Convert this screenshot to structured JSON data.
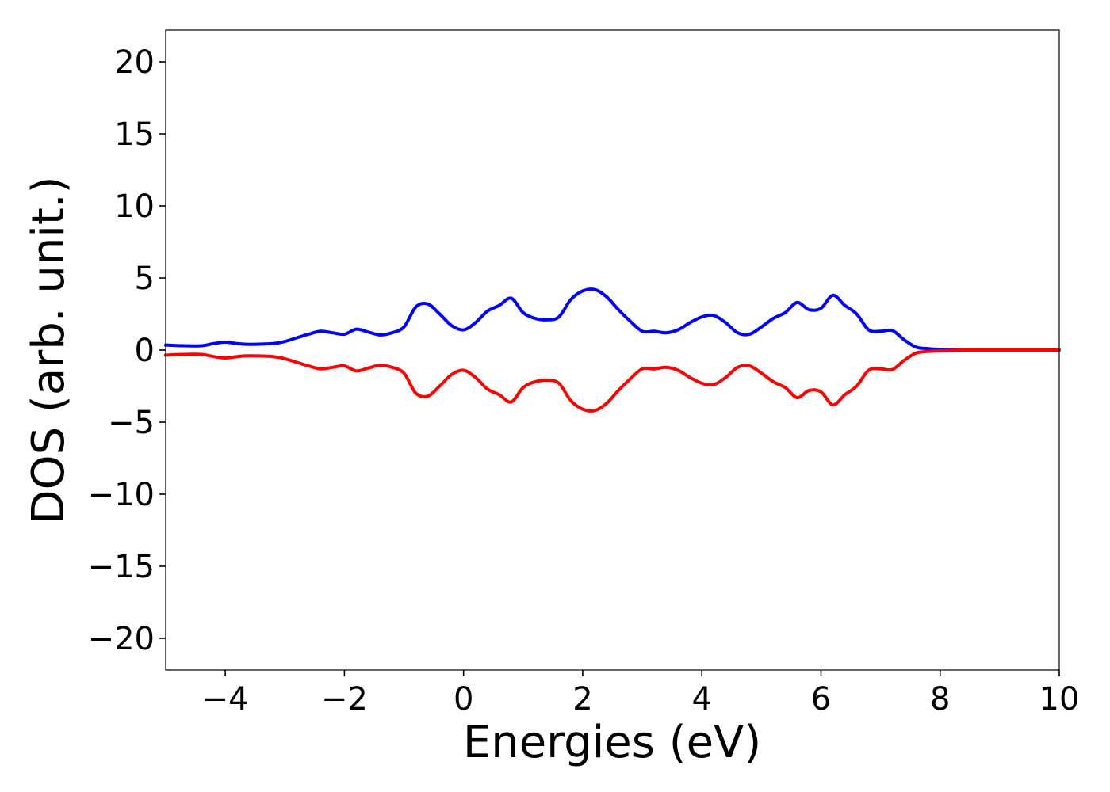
{
  "chart_data": {
    "type": "line",
    "title": "",
    "xlabel": "Energies (eV)",
    "ylabel": "DOS (arb. unit.)",
    "xlim": [
      -5,
      10
    ],
    "ylim": [
      -22.2,
      22.2
    ],
    "xticks": [
      -4,
      -2,
      0,
      2,
      4,
      6,
      8,
      10
    ],
    "xtick_labels": [
      "−4",
      "−2",
      "0",
      "2",
      "4",
      "6",
      "8",
      "10"
    ],
    "yticks": [
      20,
      15,
      10,
      5,
      0,
      -5,
      -10,
      -15,
      -20
    ],
    "ytick_labels": [
      "20",
      "15",
      "10",
      "5",
      "0",
      "−5",
      "−10",
      "−15",
      "−20"
    ],
    "grid": false,
    "x": [
      -5.0,
      -4.7,
      -4.4,
      -4.2,
      -4.0,
      -3.8,
      -3.6,
      -3.2,
      -3.0,
      -2.8,
      -2.6,
      -2.4,
      -2.2,
      -2.0,
      -1.8,
      -1.6,
      -1.4,
      -1.2,
      -1.0,
      -0.8,
      -0.6,
      -0.4,
      -0.2,
      0.0,
      0.2,
      0.4,
      0.6,
      0.8,
      1.0,
      1.2,
      1.4,
      1.6,
      1.8,
      2.0,
      2.2,
      2.4,
      2.6,
      2.8,
      3.0,
      3.2,
      3.4,
      3.6,
      3.8,
      4.0,
      4.2,
      4.4,
      4.6,
      4.8,
      5.0,
      5.2,
      5.4,
      5.6,
      5.8,
      6.0,
      6.2,
      6.4,
      6.6,
      6.8,
      7.0,
      7.2,
      7.4,
      7.6,
      7.8,
      8.0,
      8.2,
      8.4,
      9.0,
      10.0
    ],
    "series": [
      {
        "color": "#0000ff",
        "values": [
          0.35,
          0.3,
          0.3,
          0.45,
          0.55,
          0.45,
          0.4,
          0.45,
          0.6,
          0.85,
          1.1,
          1.3,
          1.2,
          1.1,
          1.45,
          1.25,
          1.05,
          1.2,
          1.6,
          3.0,
          3.2,
          2.5,
          1.7,
          1.4,
          1.9,
          2.7,
          3.1,
          3.6,
          2.6,
          2.2,
          2.1,
          2.3,
          3.5,
          4.1,
          4.2,
          3.7,
          2.8,
          2.0,
          1.3,
          1.3,
          1.2,
          1.4,
          1.9,
          2.3,
          2.4,
          1.9,
          1.2,
          1.1,
          1.6,
          2.2,
          2.6,
          3.3,
          2.8,
          2.9,
          3.8,
          3.1,
          2.5,
          1.4,
          1.3,
          1.35,
          0.7,
          0.2,
          0.1,
          0.05,
          0.02,
          0.0,
          0.0,
          0.0
        ]
      },
      {
        "color": "#ff0000",
        "values": [
          -0.35,
          -0.3,
          -0.3,
          -0.45,
          -0.55,
          -0.45,
          -0.4,
          -0.45,
          -0.6,
          -0.85,
          -1.1,
          -1.3,
          -1.2,
          -1.1,
          -1.45,
          -1.25,
          -1.05,
          -1.2,
          -1.6,
          -3.0,
          -3.2,
          -2.5,
          -1.7,
          -1.4,
          -1.9,
          -2.7,
          -3.1,
          -3.6,
          -2.6,
          -2.2,
          -2.1,
          -2.3,
          -3.5,
          -4.1,
          -4.2,
          -3.7,
          -2.8,
          -2.0,
          -1.3,
          -1.3,
          -1.2,
          -1.4,
          -1.9,
          -2.3,
          -2.4,
          -1.9,
          -1.2,
          -1.1,
          -1.6,
          -2.2,
          -2.6,
          -3.3,
          -2.8,
          -2.9,
          -3.8,
          -3.1,
          -2.5,
          -1.4,
          -1.3,
          -1.35,
          -0.7,
          -0.2,
          -0.1,
          -0.05,
          -0.02,
          0.0,
          0.0,
          0.0
        ]
      }
    ]
  }
}
